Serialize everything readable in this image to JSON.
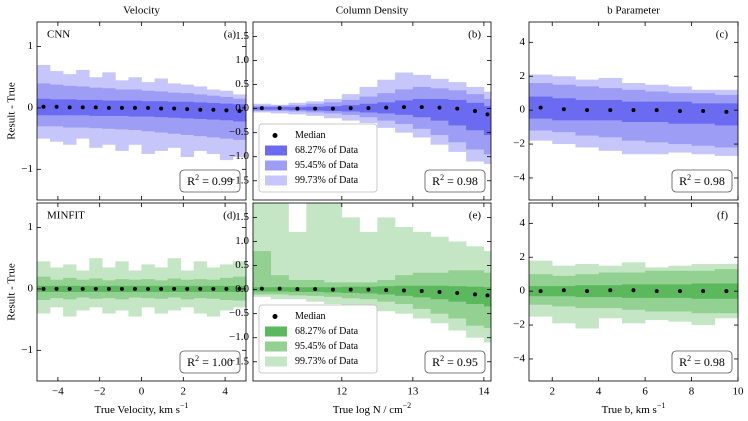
{
  "chart_data": [
    {
      "type": "percentile_band",
      "title": "Velocity",
      "row_label": "CNN",
      "panel_label": "(a)",
      "ylabel": "Result - True",
      "xlim": [
        -5,
        5
      ],
      "ylim": [
        -1.5,
        1.4
      ],
      "xticks": [
        {
          "value": -4,
          "label": "−4"
        },
        {
          "value": -2,
          "label": "−2"
        },
        0,
        2,
        4
      ],
      "yticks": [
        {
          "value": -1,
          "label": "−1"
        },
        0,
        1
      ],
      "bins": [
        -5,
        -4.375,
        -3.75,
        -3.125,
        -2.5,
        -1.875,
        -1.25,
        -0.625,
        0,
        0.625,
        1.25,
        1.875,
        2.5,
        3.125,
        3.75,
        4.375,
        5
      ],
      "median": {
        "color": "#000000",
        "values": [
          0.02,
          0.02,
          0.01,
          0.01,
          0.01,
          0.0,
          0.0,
          0.0,
          0.0,
          -0.01,
          -0.01,
          -0.02,
          -0.03,
          -0.03,
          -0.04,
          -0.05
        ]
      },
      "series": [
        {
          "color": "#6b6bf2",
          "upper": [
            0.15,
            0.14,
            0.14,
            0.13,
            0.13,
            0.12,
            0.12,
            0.12,
            0.11,
            0.11,
            0.1,
            0.1,
            0.09,
            0.08,
            0.07,
            0.06
          ],
          "lower": [
            -0.12,
            -0.12,
            -0.12,
            -0.12,
            -0.13,
            -0.13,
            -0.13,
            -0.14,
            -0.14,
            -0.15,
            -0.16,
            -0.17,
            -0.18,
            -0.19,
            -0.2,
            -0.22
          ]
        },
        {
          "color": "#9d9df6",
          "upper": [
            0.4,
            0.38,
            0.36,
            0.35,
            0.33,
            0.32,
            0.3,
            0.3,
            0.28,
            0.27,
            0.25,
            0.24,
            0.22,
            0.2,
            0.18,
            0.15
          ],
          "lower": [
            -0.3,
            -0.3,
            -0.32,
            -0.32,
            -0.33,
            -0.34,
            -0.35,
            -0.36,
            -0.38,
            -0.4,
            -0.42,
            -0.44,
            -0.46,
            -0.48,
            -0.5,
            -0.52
          ]
        },
        {
          "color": "#c6c6fb",
          "upper": [
            0.7,
            0.6,
            0.55,
            0.62,
            0.5,
            0.58,
            0.45,
            0.5,
            0.42,
            0.48,
            0.4,
            0.38,
            0.35,
            0.3,
            0.28,
            0.22
          ],
          "lower": [
            -0.5,
            -0.55,
            -0.6,
            -0.5,
            -0.65,
            -0.6,
            -0.7,
            -0.6,
            -0.75,
            -0.7,
            -0.65,
            -0.8,
            -0.7,
            -0.75,
            -0.85,
            -0.8
          ]
        }
      ],
      "r2_label": [
        "R",
        "2",
        " = 0.99"
      ]
    },
    {
      "type": "percentile_band",
      "title": "Column Density",
      "panel_label": "(b)",
      "xlim": [
        10.75,
        14.1
      ],
      "ylim": [
        -1.9,
        1.8
      ],
      "xticks": [
        12,
        13,
        14
      ],
      "yticks": [
        {
          "value": -1.5,
          "label": "−1.5"
        },
        {
          "value": -1,
          "label": "−1.0"
        },
        {
          "value": -0.5,
          "label": "−0.5"
        },
        {
          "value": 0,
          "label": "0.0"
        },
        0.5,
        {
          "value": 1,
          "label": "1.0"
        },
        1.5
      ],
      "bins": [
        10.75,
        11,
        11.25,
        11.5,
        11.75,
        12,
        12.25,
        12.5,
        12.75,
        13,
        13.25,
        13.5,
        13.75,
        14,
        14.1
      ],
      "median": {
        "name": "Median",
        "color": "#000000",
        "values": [
          0.01,
          0.01,
          0.0,
          0.0,
          0.0,
          0.01,
          0.01,
          0.02,
          0.03,
          0.03,
          0.02,
          0.0,
          -0.05,
          -0.12
        ]
      },
      "series": [
        {
          "name": "68.27% of Data",
          "color": "#6b6bf2",
          "upper": [
            0.03,
            0.03,
            0.03,
            0.04,
            0.05,
            0.07,
            0.1,
            0.13,
            0.17,
            0.2,
            0.2,
            0.18,
            0.12,
            0.05
          ],
          "lower": [
            -0.02,
            -0.02,
            -0.03,
            -0.04,
            -0.05,
            -0.06,
            -0.08,
            -0.1,
            -0.13,
            -0.18,
            -0.25,
            -0.35,
            -0.45,
            -0.55
          ]
        },
        {
          "name": "95.45% of Data",
          "color": "#9d9df6",
          "upper": [
            0.06,
            0.06,
            0.07,
            0.1,
            0.13,
            0.18,
            0.25,
            0.32,
            0.4,
            0.45,
            0.42,
            0.38,
            0.3,
            0.2
          ],
          "lower": [
            -0.05,
            -0.05,
            -0.06,
            -0.08,
            -0.1,
            -0.13,
            -0.18,
            -0.25,
            -0.32,
            -0.42,
            -0.55,
            -0.7,
            -0.85,
            -0.95
          ]
        },
        {
          "name": "99.73% of Data",
          "color": "#c6c6fb",
          "upper": [
            0.1,
            0.08,
            0.12,
            0.15,
            0.2,
            0.3,
            0.45,
            0.6,
            0.75,
            0.7,
            0.62,
            0.55,
            0.45,
            0.35
          ],
          "lower": [
            -0.08,
            -0.1,
            -0.12,
            -0.15,
            -0.2,
            -0.25,
            -0.3,
            -0.4,
            -0.5,
            -0.6,
            -0.75,
            -0.9,
            -1.1,
            -1.15
          ]
        }
      ],
      "legend": "lower left",
      "r2_label": [
        "R",
        "2",
        " = 0.98"
      ]
    },
    {
      "type": "percentile_band",
      "title": "b Parameter",
      "panel_label": "(c)",
      "xlim": [
        1,
        10
      ],
      "ylim": [
        -5.3,
        5.2
      ],
      "xticks": [
        2,
        4,
        6,
        8,
        10
      ],
      "yticks": [
        {
          "value": -4,
          "label": "−4"
        },
        {
          "value": -2,
          "label": "−2"
        },
        0,
        2,
        4
      ],
      "bins": [
        1,
        2,
        3,
        4,
        5,
        6,
        7,
        8,
        9,
        10
      ],
      "median": {
        "color": "#000000",
        "values": [
          0.15,
          0.05,
          0.0,
          0.0,
          0.0,
          0.0,
          -0.05,
          -0.05,
          -0.1
        ]
      },
      "series": [
        {
          "color": "#6b6bf2",
          "upper": [
            0.8,
            0.7,
            0.6,
            0.6,
            0.5,
            0.5,
            0.5,
            0.4,
            0.4
          ],
          "lower": [
            -0.5,
            -0.6,
            -0.6,
            -0.6,
            -0.7,
            -0.7,
            -0.8,
            -0.8,
            -0.9
          ]
        },
        {
          "color": "#9d9df6",
          "upper": [
            1.6,
            1.5,
            1.4,
            1.3,
            1.2,
            1.1,
            1.0,
            1.0,
            0.9
          ],
          "lower": [
            -1.2,
            -1.3,
            -1.5,
            -1.6,
            -1.8,
            -1.9,
            -2.0,
            -2.1,
            -2.2
          ]
        },
        {
          "color": "#c6c6fb",
          "upper": [
            2.1,
            2.0,
            1.8,
            1.9,
            1.6,
            1.5,
            1.4,
            1.2,
            1.2
          ],
          "lower": [
            -1.8,
            -2.0,
            -2.2,
            -2.4,
            -2.6,
            -2.6,
            -2.5,
            -2.6,
            -2.7
          ]
        }
      ],
      "r2_label": [
        "R",
        "2",
        " = 0.98"
      ]
    },
    {
      "type": "percentile_band",
      "row_label": "MINFIT",
      "panel_label": "(d)",
      "ylabel": "Result - True",
      "xlabel": [
        "True Velocity, km s",
        "−1"
      ],
      "xlim": [
        -5,
        5
      ],
      "ylim": [
        -1.5,
        1.4
      ],
      "xticks": [
        {
          "value": -4,
          "label": "−4"
        },
        {
          "value": -2,
          "label": "−2"
        },
        0,
        2,
        4
      ],
      "yticks": [
        {
          "value": -1,
          "label": "−1"
        },
        0,
        1
      ],
      "bins": [
        -5,
        -4.375,
        -3.75,
        -3.125,
        -2.5,
        -1.875,
        -1.25,
        -0.625,
        0,
        0.625,
        1.25,
        1.875,
        2.5,
        3.125,
        3.75,
        4.375,
        5
      ],
      "median": {
        "color": "#000000",
        "values": [
          0.0,
          0.0,
          0.0,
          0.0,
          0.0,
          0.0,
          0.0,
          0.0,
          0.0,
          0.0,
          0.0,
          0.0,
          0.0,
          0.0,
          0.0,
          0.0
        ]
      },
      "series": [
        {
          "color": "#5cb85c",
          "upper": [
            0.05,
            0.05,
            0.05,
            0.05,
            0.05,
            0.05,
            0.05,
            0.05,
            0.05,
            0.05,
            0.05,
            0.05,
            0.05,
            0.05,
            0.05,
            0.05
          ],
          "lower": [
            -0.05,
            -0.05,
            -0.05,
            -0.05,
            -0.05,
            -0.05,
            -0.05,
            -0.05,
            -0.05,
            -0.05,
            -0.05,
            -0.05,
            -0.05,
            -0.05,
            -0.05,
            -0.05
          ]
        },
        {
          "color": "#92d192",
          "upper": [
            0.2,
            0.15,
            0.18,
            0.15,
            0.17,
            0.14,
            0.16,
            0.15,
            0.16,
            0.14,
            0.17,
            0.15,
            0.16,
            0.15,
            0.18,
            0.2
          ],
          "lower": [
            -0.18,
            -0.15,
            -0.17,
            -0.14,
            -0.16,
            -0.15,
            -0.17,
            -0.14,
            -0.15,
            -0.16,
            -0.14,
            -0.17,
            -0.15,
            -0.16,
            -0.18,
            -0.19
          ]
        },
        {
          "color": "#c4e6c4",
          "upper": [
            0.45,
            0.35,
            0.4,
            0.3,
            0.5,
            0.35,
            0.45,
            0.3,
            0.4,
            0.35,
            0.5,
            0.3,
            0.45,
            0.35,
            0.4,
            0.45
          ],
          "lower": [
            -0.4,
            -0.3,
            -0.45,
            -0.35,
            -0.3,
            -0.4,
            -0.35,
            -0.45,
            -0.3,
            -0.4,
            -0.35,
            -0.3,
            -0.4,
            -0.45,
            -0.35,
            -0.3
          ]
        }
      ],
      "r2_label": [
        "R",
        "2",
        " = 1.00"
      ]
    },
    {
      "type": "percentile_band",
      "panel_label": "(e)",
      "xlabel": [
        "True log N / cm",
        "−2"
      ],
      "xlim": [
        10.75,
        14.1
      ],
      "ylim": [
        -1.9,
        1.8
      ],
      "xticks": [
        12,
        13,
        14
      ],
      "yticks": [
        {
          "value": -1.5,
          "label": "−1.5"
        },
        {
          "value": -1,
          "label": "−1.0"
        },
        {
          "value": -0.5,
          "label": "−0.5"
        },
        {
          "value": 0,
          "label": "0.0"
        },
        0.5,
        {
          "value": 1,
          "label": "1.0"
        },
        1.5
      ],
      "bins": [
        10.75,
        11,
        11.25,
        11.5,
        11.75,
        12,
        12.25,
        12.5,
        12.75,
        13,
        13.25,
        13.5,
        13.75,
        14,
        14.1
      ],
      "median": {
        "name": "Median",
        "color": "#000000",
        "values": [
          0.02,
          0.02,
          0.01,
          0.01,
          0.0,
          0.0,
          0.0,
          -0.01,
          -0.02,
          -0.03,
          -0.05,
          -0.07,
          -0.1,
          -0.12
        ]
      },
      "series": [
        {
          "name": "68.27% of Data",
          "color": "#5cb85c",
          "upper": [
            0.05,
            0.05,
            0.05,
            0.05,
            0.05,
            0.06,
            0.06,
            0.07,
            0.08,
            0.08,
            0.08,
            0.07,
            0.06,
            0.05
          ],
          "lower": [
            -0.04,
            -0.04,
            -0.05,
            -0.05,
            -0.06,
            -0.07,
            -0.08,
            -0.1,
            -0.13,
            -0.16,
            -0.2,
            -0.25,
            -0.3,
            -0.35
          ]
        },
        {
          "name": "95.45% of Data",
          "color": "#92d192",
          "upper": [
            0.8,
            0.3,
            0.2,
            0.2,
            0.15,
            0.15,
            0.15,
            0.2,
            0.3,
            0.35,
            0.35,
            0.4,
            0.4,
            0.35
          ],
          "lower": [
            -0.1,
            -0.1,
            -0.12,
            -0.13,
            -0.15,
            -0.18,
            -0.2,
            -0.25,
            -0.3,
            -0.4,
            -0.5,
            -0.6,
            -0.75,
            -0.8
          ]
        },
        {
          "name": "99.73% of Data",
          "color": "#c4e6c4",
          "upper": [
            1.8,
            1.8,
            1.2,
            1.8,
            1.8,
            1.5,
            1.2,
            1.5,
            1.3,
            1.2,
            1.1,
            1.0,
            0.9,
            0.8
          ],
          "lower": [
            -0.15,
            -0.2,
            -0.2,
            -0.25,
            -0.3,
            -0.35,
            -0.4,
            -0.45,
            -0.5,
            -0.6,
            -0.7,
            -0.85,
            -1.0,
            -1.1
          ]
        }
      ],
      "legend": "lower left",
      "r2_label": [
        "R",
        "2",
        " = 0.95"
      ]
    },
    {
      "type": "percentile_band",
      "panel_label": "(f)",
      "xlabel": [
        "True b, km s",
        "−1"
      ],
      "xlim": [
        1,
        10
      ],
      "ylim": [
        -5.3,
        5.2
      ],
      "xticks": [
        2,
        4,
        6,
        8,
        10
      ],
      "yticks": [
        {
          "value": -4,
          "label": "−4"
        },
        {
          "value": -2,
          "label": "−2"
        },
        0,
        2,
        4
      ],
      "bins": [
        1,
        2,
        3,
        4,
        5,
        6,
        7,
        8,
        9,
        10
      ],
      "median": {
        "color": "#000000",
        "values": [
          0.0,
          0.05,
          0.0,
          0.05,
          0.05,
          0.0,
          0.0,
          0.0,
          0.0
        ]
      },
      "series": [
        {
          "color": "#5cb85c",
          "upper": [
            0.3,
            0.3,
            0.35,
            0.35,
            0.4,
            0.4,
            0.4,
            0.45,
            0.45
          ],
          "lower": [
            -0.3,
            -0.3,
            -0.35,
            -0.35,
            -0.4,
            -0.4,
            -0.4,
            -0.45,
            -0.45
          ]
        },
        {
          "color": "#92d192",
          "upper": [
            1.0,
            0.9,
            1.0,
            1.1,
            1.1,
            1.2,
            1.2,
            1.2,
            1.3
          ],
          "lower": [
            -0.8,
            -0.9,
            -1.0,
            -1.0,
            -1.1,
            -1.2,
            -1.2,
            -1.3,
            -1.3
          ]
        },
        {
          "color": "#c4e6c4",
          "upper": [
            1.8,
            1.5,
            1.6,
            1.5,
            1.7,
            1.4,
            1.5,
            1.6,
            1.6
          ],
          "lower": [
            -1.5,
            -1.9,
            -2.2,
            -1.6,
            -1.9,
            -1.7,
            -1.8,
            -2.0,
            -1.6
          ]
        }
      ],
      "r2_label": [
        "R",
        "2",
        " = 0.98"
      ]
    }
  ]
}
